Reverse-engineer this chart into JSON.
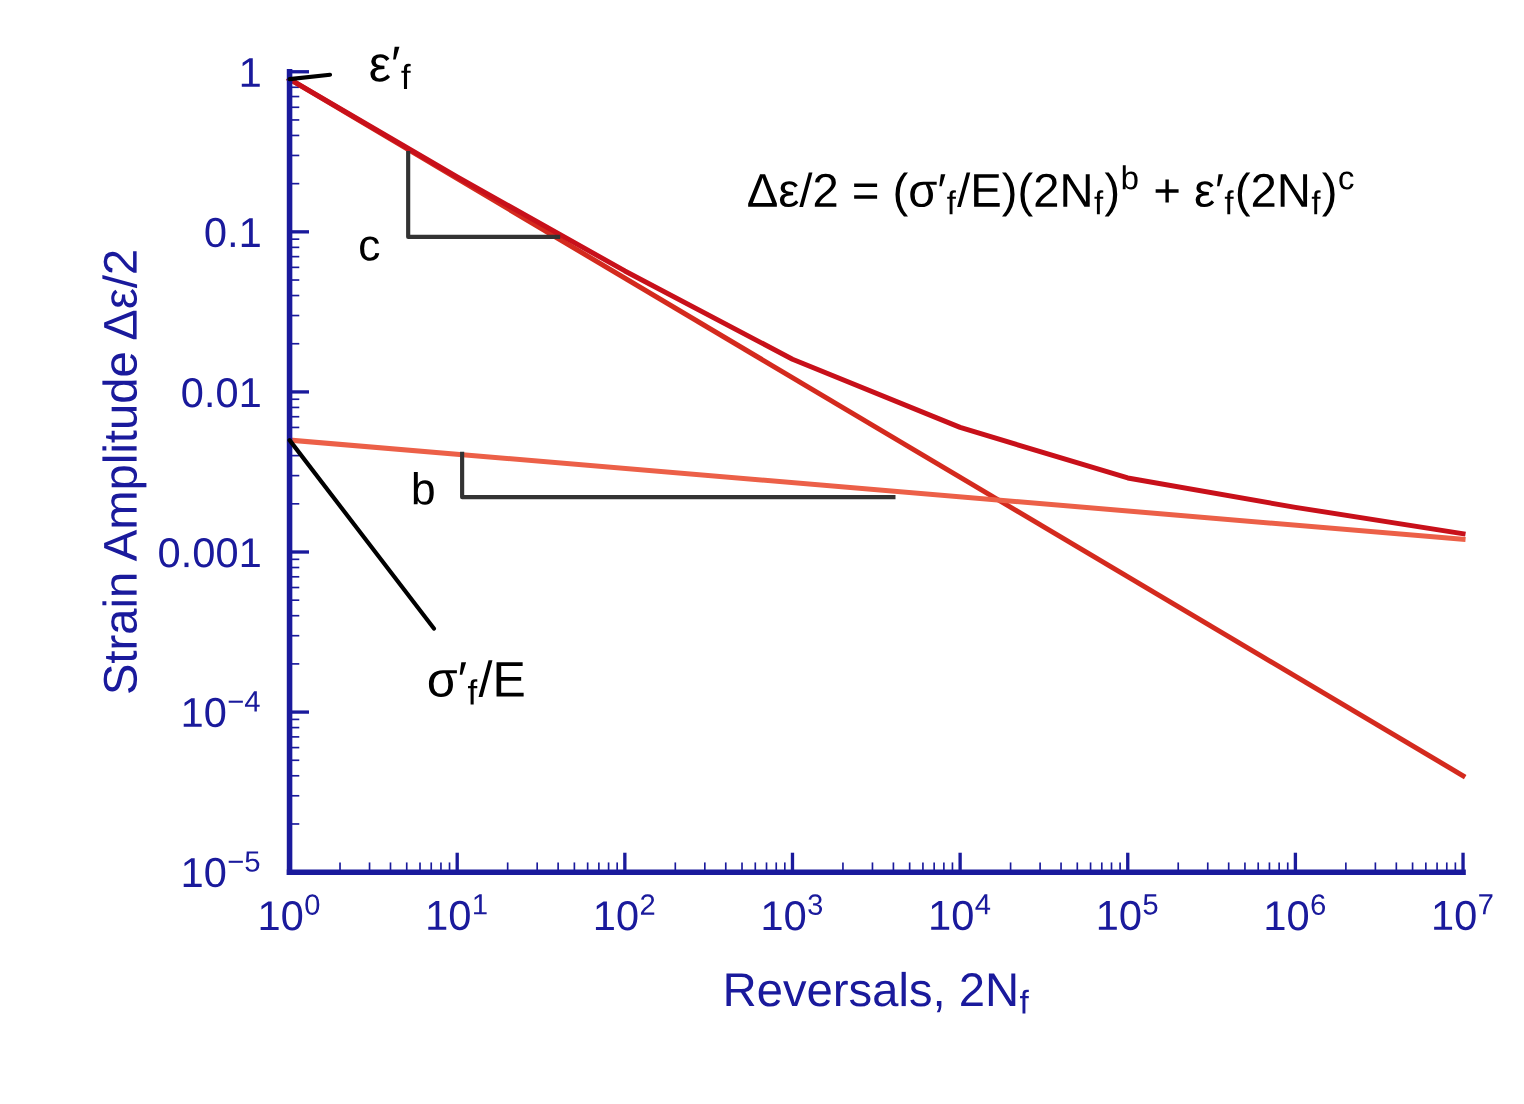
{
  "chart_data": {
    "type": "line",
    "xlabel": "Reversals, 2N$_{f}$",
    "ylabel": "Strain Amplitude Δε/2",
    "log": "xy",
    "grid": false,
    "marker": "none",
    "line_style": "solid",
    "xlim": [
      1,
      10000000
    ],
    "ylim": [
      1e-05,
      1
    ],
    "xticks": [
      {
        "value": 1,
        "label": "10$^{0}$"
      },
      {
        "value": 10,
        "label": "10$^{1}$"
      },
      {
        "value": 100,
        "label": "10$^{2}$"
      },
      {
        "value": 1000,
        "label": "10$^{3}$"
      },
      {
        "value": 10000,
        "label": "10$^{4}$"
      },
      {
        "value": 100000,
        "label": "10$^{5}$"
      },
      {
        "value": 1000000,
        "label": "10$^{6}$"
      },
      {
        "value": 10000000,
        "label": "10$^{7}$"
      }
    ],
    "yticks": [
      {
        "value": 1e-05,
        "label": "10$^{−5}$"
      },
      {
        "value": 0.0001,
        "label": "10$^{−4}$"
      },
      0.001,
      0.01,
      0.1,
      1
    ],
    "series": [
      {
        "color": "#d42a1e",
        "x": [
          1,
          10000000
        ],
        "values": [
          0.9,
          4e-05
        ]
      },
      {
        "color": "#ec6048",
        "x": [
          1,
          10000000
        ],
        "values": [
          0.005,
          0.0012
        ]
      },
      {
        "color": "#c8101a",
        "x": [
          1,
          10,
          100,
          1000,
          10000,
          100000,
          1000000,
          10000000
        ],
        "values": [
          0.9,
          0.22,
          0.057,
          0.016,
          0.006,
          0.0029,
          0.0019,
          0.0013
        ]
      }
    ],
    "annotations": [
      {
        "text": "ε′$_{f}$",
        "x": 1,
        "y": 0.9
      },
      {
        "text": "σ′$_{f}$/E",
        "x": 1,
        "y": 0.005
      },
      {
        "text": "c",
        "x": 5.1,
        "y": 0.33
      },
      {
        "text": "b",
        "x": 10.7,
        "y": 0.0041
      },
      "Δε/2 = (σ′$_{f}$/E)(2N$_{f}$)$^{b}$ + ε′$_{f}$(2N$_{f}$)$^{c}$"
    ]
  }
}
